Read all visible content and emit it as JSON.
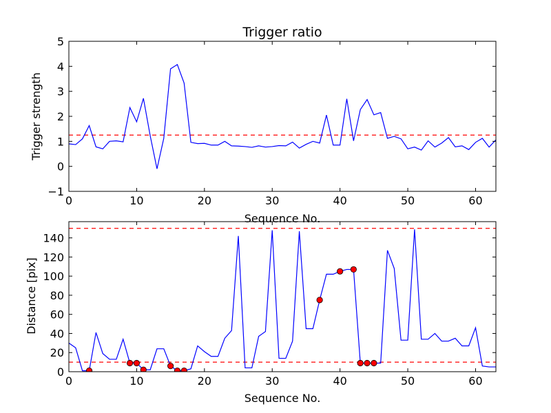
{
  "chart_data": [
    {
      "type": "line",
      "title": "Trigger ratio",
      "xlabel": "Sequence No.",
      "ylabel": "Trigger strength",
      "xlim": [
        0,
        63
      ],
      "ylim": [
        -1,
        5
      ],
      "xticks": [
        0,
        10,
        20,
        30,
        40,
        50,
        60
      ],
      "yticks": [
        -1,
        0,
        1,
        2,
        3,
        4,
        5
      ],
      "grid": false,
      "colors": {
        "line": "#0000ff",
        "threshold": "#ff0000"
      },
      "series": [
        {
          "x": [
            0,
            1,
            2,
            3,
            4,
            5,
            6,
            7,
            8,
            9,
            10,
            11,
            12,
            13,
            14,
            15,
            16,
            17,
            18,
            19,
            20,
            21,
            22,
            23,
            24,
            25,
            26,
            27,
            28,
            29,
            30,
            31,
            32,
            33,
            34,
            35,
            36,
            37,
            38,
            39,
            40,
            41,
            42,
            43,
            44,
            45,
            46,
            47,
            48,
            49,
            50,
            51,
            52,
            53,
            54,
            55,
            56,
            57,
            58,
            59,
            60,
            61,
            62,
            63
          ],
          "y": [
            0.9,
            0.87,
            1.1,
            1.63,
            0.78,
            0.7,
            1.0,
            1.02,
            0.98,
            2.35,
            1.78,
            2.72,
            1.22,
            -0.1,
            1.12,
            3.9,
            4.07,
            3.33,
            0.96,
            0.91,
            0.92,
            0.85,
            0.85,
            1.0,
            0.82,
            0.81,
            0.79,
            0.76,
            0.82,
            0.77,
            0.79,
            0.83,
            0.82,
            0.97,
            0.73,
            0.88,
            1.0,
            0.93,
            2.05,
            0.85,
            0.85,
            2.7,
            1.02,
            2.27,
            2.67,
            2.06,
            2.15,
            1.12,
            1.2,
            1.1,
            0.7,
            0.77,
            0.65,
            1.02,
            0.77,
            0.93,
            1.15,
            0.78,
            0.82,
            0.67,
            0.96,
            1.12,
            0.77,
            1.06
          ]
        }
      ],
      "threshold_lines": [
        1.25
      ]
    },
    {
      "type": "line",
      "title": "",
      "xlabel": "Sequence No.",
      "ylabel": "Distance [pix]",
      "xlim": [
        0,
        63
      ],
      "ylim": [
        0,
        157
      ],
      "xticks": [
        0,
        10,
        20,
        30,
        40,
        50,
        60
      ],
      "yticks": [
        0,
        20,
        40,
        60,
        80,
        100,
        120,
        140
      ],
      "grid": false,
      "colors": {
        "line": "#0000ff",
        "threshold": "#ff0000",
        "marker": "#ff0000"
      },
      "series": [
        {
          "x": [
            0,
            1,
            2,
            3,
            4,
            5,
            6,
            7,
            8,
            9,
            10,
            11,
            12,
            13,
            14,
            15,
            16,
            17,
            18,
            19,
            20,
            21,
            22,
            23,
            24,
            25,
            26,
            27,
            28,
            29,
            30,
            31,
            32,
            33,
            34,
            35,
            36,
            37,
            38,
            39,
            40,
            41,
            42,
            43,
            44,
            45,
            46,
            47,
            48,
            49,
            50,
            51,
            52,
            53,
            54,
            55,
            56,
            57,
            58,
            59,
            60,
            61,
            62,
            63
          ],
          "y": [
            30,
            25,
            1,
            1,
            41,
            19,
            13,
            13,
            34,
            9,
            9,
            2,
            2,
            24,
            24,
            6,
            1,
            1,
            3,
            27,
            21,
            16,
            16,
            35,
            43,
            142,
            4,
            4,
            37,
            42,
            148,
            14,
            14,
            32,
            147,
            45,
            45,
            75,
            102,
            102,
            105,
            107,
            107,
            9,
            9,
            9,
            9,
            127,
            108,
            33,
            33,
            149,
            34,
            34,
            40,
            32,
            32,
            35,
            27,
            27,
            46,
            6,
            5,
            5
          ]
        },
        {
          "type": "scatter",
          "x": [
            3,
            9,
            10,
            11,
            15,
            16,
            17,
            37,
            40,
            42,
            43,
            44,
            45
          ],
          "y": [
            1,
            9,
            9,
            2,
            6,
            1,
            1,
            75,
            105,
            107,
            9,
            9,
            9
          ]
        }
      ],
      "threshold_lines": [
        10,
        150
      ]
    }
  ]
}
